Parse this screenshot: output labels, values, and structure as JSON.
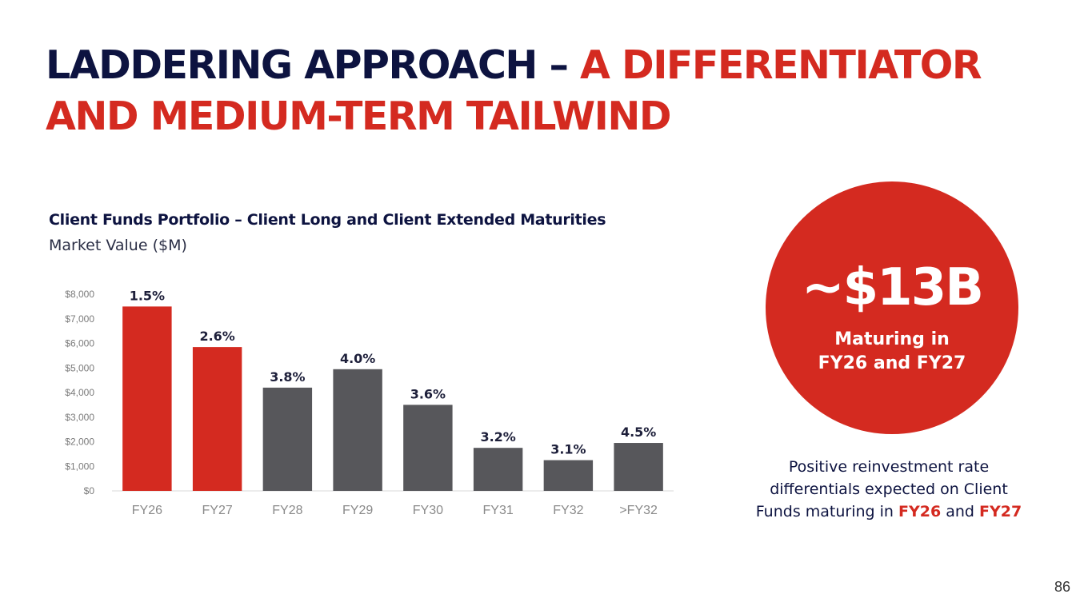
{
  "slide": {
    "title_dark": "LADDERING APPROACH – ",
    "title_red_1": "A DIFFERENTIATOR",
    "title_red_2": "AND MEDIUM-TERM TAILWIND",
    "page_number": "86"
  },
  "callout": {
    "amount": "~$13B",
    "line1": "Maturing in",
    "line2": "FY26 and FY27"
  },
  "note": {
    "text1": "Positive reinvestment rate differentials expected on Client Funds maturing in ",
    "hl1": "FY26",
    "text2": " and ",
    "hl2": "FY27"
  },
  "colors": {
    "title_dark": "#0d1340",
    "accent_red": "#d42a20",
    "bar_gray": "#57575b"
  },
  "chart_data": {
    "type": "bar",
    "title": "Client Funds Portfolio – Client Long and Client Extended Maturities",
    "subtitle": "Market Value ($M)",
    "xlabel": "",
    "ylabel": "",
    "categories": [
      "FY26",
      "FY27",
      "FY28",
      "FY29",
      "FY30",
      "FY31",
      "FY32",
      ">FY32"
    ],
    "values": [
      7500,
      5850,
      4200,
      4950,
      3500,
      1750,
      1250,
      1950
    ],
    "data_labels": [
      "1.5%",
      "2.6%",
      "3.8%",
      "4.0%",
      "3.6%",
      "3.2%",
      "3.1%",
      "4.5%"
    ],
    "bar_colors": [
      "#d42a20",
      "#d42a20",
      "#57575b",
      "#57575b",
      "#57575b",
      "#57575b",
      "#57575b",
      "#57575b"
    ],
    "ylim": [
      0,
      8000
    ],
    "yticks": [
      0,
      1000,
      2000,
      3000,
      4000,
      5000,
      6000,
      7000,
      8000
    ],
    "ytick_labels": [
      "$0",
      "$1,000",
      "$2,000",
      "$3,000",
      "$4,000",
      "$5,000",
      "$6,000",
      "$7,000",
      "$8,000"
    ],
    "grid": false,
    "legend": "none"
  }
}
